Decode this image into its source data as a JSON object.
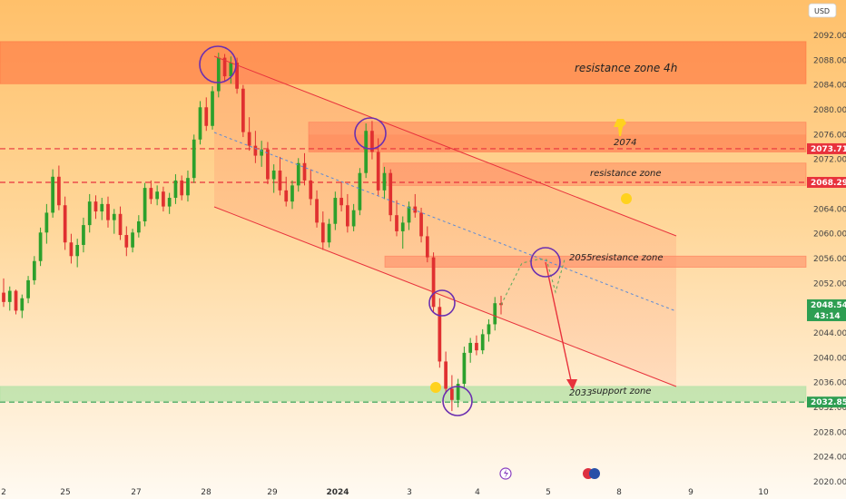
{
  "chart_data": {
    "type": "candlestick",
    "currency_button": "USD",
    "y_ticks": [
      "2092.000",
      "2088.000",
      "2084.000",
      "2080.000",
      "2076.000",
      "2072.000",
      "2068.000",
      "2064.000",
      "2060.000",
      "2056.000",
      "2052.000",
      "2048.000",
      "2044.000",
      "2040.000",
      "2036.000",
      "2032.000",
      "2028.000",
      "2024.000",
      "2020.000"
    ],
    "x_ticks": [
      {
        "label": "2",
        "bold": false
      },
      {
        "label": "25",
        "bold": false
      },
      {
        "label": "27",
        "bold": false
      },
      {
        "label": "28",
        "bold": false
      },
      {
        "label": "29",
        "bold": false
      },
      {
        "label": "2024",
        "bold": true
      },
      {
        "label": "3",
        "bold": false
      },
      {
        "label": "4",
        "bold": false
      },
      {
        "label": "5",
        "bold": false
      },
      {
        "label": "8",
        "bold": false
      },
      {
        "label": "9",
        "bold": false
      },
      {
        "label": "10",
        "bold": false
      }
    ],
    "zones": [
      {
        "label": "resistance zone 4h",
        "low": 2084.2,
        "high": 2091.0,
        "color": "#ff6a3a",
        "opacity": 0.55
      },
      {
        "label": "2074",
        "low": 2073.2,
        "high": 2078.0,
        "color": "#ff7050",
        "opacity": 0.45
      },
      {
        "label": "resistance zone",
        "low": 2067.8,
        "high": 2071.4,
        "color": "#ff7050",
        "opacity": 0.4
      },
      {
        "label": "2055",
        "low": 2054.6,
        "high": 2056.4,
        "color": "#ff7050",
        "opacity": 0.45
      },
      {
        "label": "resistance zone",
        "low": 2054.6,
        "high": 2056.4,
        "color": "#ff7050",
        "opacity": 0.0
      },
      {
        "label": "2033",
        "low": 2033.0,
        "high": 2035.4,
        "color": "#a8e0a0",
        "opacity": 0.65
      },
      {
        "label": "support zone",
        "low": 2033.0,
        "high": 2035.4,
        "color": "#a8e0a0",
        "opacity": 0.0
      }
    ],
    "price_lines": [
      {
        "value": "2073.716",
        "num": 2073.716,
        "color": "#e8323c"
      },
      {
        "value": "2068.291",
        "num": 2068.291,
        "color": "#e8323c"
      },
      {
        "value": "2032.851",
        "num": 2032.851,
        "color": "#2e9e52"
      }
    ],
    "current_price": {
      "value": "2048.540",
      "countdown": "43:14",
      "num": 2048.54
    },
    "candles": [
      [
        2050.5,
        2052.8,
        2048.2,
        2049.0
      ],
      [
        2049.0,
        2051.5,
        2047.6,
        2050.8
      ],
      [
        2050.8,
        2051.0,
        2047.0,
        2047.6
      ],
      [
        2047.6,
        2050.2,
        2046.4,
        2049.6
      ],
      [
        2049.6,
        2053.2,
        2048.8,
        2052.5
      ],
      [
        2052.5,
        2056.4,
        2051.8,
        2055.6
      ],
      [
        2055.6,
        2061.0,
        2054.8,
        2060.2
      ],
      [
        2060.2,
        2064.8,
        2058.4,
        2063.4
      ],
      [
        2063.4,
        2070.4,
        2062.6,
        2069.2
      ],
      [
        2069.2,
        2071.0,
        2063.8,
        2064.6
      ],
      [
        2064.6,
        2066.0,
        2057.4,
        2058.6
      ],
      [
        2058.6,
        2060.0,
        2055.2,
        2056.4
      ],
      [
        2056.4,
        2059.2,
        2054.6,
        2058.2
      ],
      [
        2058.2,
        2062.6,
        2057.0,
        2061.4
      ],
      [
        2061.4,
        2066.4,
        2060.2,
        2065.2
      ],
      [
        2065.2,
        2066.2,
        2062.4,
        2063.6
      ],
      [
        2063.6,
        2065.8,
        2062.2,
        2064.8
      ],
      [
        2064.8,
        2066.0,
        2061.0,
        2062.2
      ],
      [
        2062.2,
        2064.0,
        2060.0,
        2063.2
      ],
      [
        2063.2,
        2064.4,
        2059.0,
        2059.8
      ],
      [
        2059.8,
        2061.2,
        2056.4,
        2057.8
      ],
      [
        2057.8,
        2060.8,
        2057.0,
        2060.2
      ],
      [
        2060.2,
        2063.0,
        2059.4,
        2062.0
      ],
      [
        2062.0,
        2068.2,
        2061.2,
        2067.4
      ],
      [
        2067.4,
        2068.6,
        2064.8,
        2065.6
      ],
      [
        2065.6,
        2067.8,
        2064.6,
        2066.8
      ],
      [
        2066.8,
        2067.6,
        2063.6,
        2064.4
      ],
      [
        2064.4,
        2066.6,
        2063.2,
        2065.8
      ],
      [
        2065.8,
        2069.6,
        2064.8,
        2068.6
      ],
      [
        2068.6,
        2069.4,
        2065.4,
        2066.2
      ],
      [
        2066.2,
        2070.2,
        2065.2,
        2069.0
      ],
      [
        2069.0,
        2076.0,
        2068.2,
        2075.2
      ],
      [
        2075.2,
        2081.4,
        2074.4,
        2080.4
      ],
      [
        2080.4,
        2082.0,
        2076.6,
        2077.4
      ],
      [
        2077.4,
        2083.8,
        2076.8,
        2083.0
      ],
      [
        2083.0,
        2089.2,
        2082.0,
        2088.4
      ],
      [
        2088.4,
        2089.0,
        2084.6,
        2085.4
      ],
      [
        2085.4,
        2088.6,
        2084.2,
        2087.6
      ],
      [
        2087.6,
        2088.4,
        2082.6,
        2083.4
      ],
      [
        2083.4,
        2084.0,
        2075.6,
        2076.4
      ],
      [
        2076.4,
        2078.8,
        2073.4,
        2074.2
      ],
      [
        2074.2,
        2076.6,
        2071.4,
        2072.6
      ],
      [
        2072.6,
        2075.0,
        2070.8,
        2073.6
      ],
      [
        2073.6,
        2074.8,
        2068.0,
        2068.8
      ],
      [
        2068.8,
        2071.2,
        2066.6,
        2070.2
      ],
      [
        2070.2,
        2072.4,
        2066.2,
        2067.0
      ],
      [
        2067.0,
        2069.2,
        2064.4,
        2065.2
      ],
      [
        2065.2,
        2068.6,
        2064.0,
        2067.8
      ],
      [
        2067.8,
        2072.2,
        2066.8,
        2071.4
      ],
      [
        2071.4,
        2073.0,
        2067.8,
        2068.6
      ],
      [
        2068.6,
        2070.4,
        2064.6,
        2065.6
      ],
      [
        2065.6,
        2067.0,
        2061.0,
        2061.8
      ],
      [
        2061.8,
        2063.6,
        2057.4,
        2058.6
      ],
      [
        2058.6,
        2062.4,
        2057.8,
        2061.6
      ],
      [
        2061.6,
        2066.8,
        2060.6,
        2065.8
      ],
      [
        2065.8,
        2068.4,
        2063.6,
        2064.6
      ],
      [
        2064.6,
        2066.4,
        2060.2,
        2061.2
      ],
      [
        2061.2,
        2064.8,
        2060.4,
        2063.8
      ],
      [
        2063.8,
        2070.6,
        2063.0,
        2069.8
      ],
      [
        2069.8,
        2077.8,
        2069.0,
        2076.6
      ],
      [
        2076.6,
        2078.2,
        2072.0,
        2073.2
      ],
      [
        2073.2,
        2075.4,
        2066.2,
        2067.0
      ],
      [
        2067.0,
        2070.8,
        2065.6,
        2069.8
      ],
      [
        2069.8,
        2070.4,
        2062.0,
        2063.0
      ],
      [
        2063.0,
        2065.4,
        2059.6,
        2060.4
      ],
      [
        2060.4,
        2062.8,
        2057.6,
        2061.8
      ],
      [
        2061.8,
        2065.2,
        2060.6,
        2064.4
      ],
      [
        2064.4,
        2066.4,
        2062.6,
        2063.4
      ],
      [
        2063.4,
        2064.2,
        2058.6,
        2059.6
      ],
      [
        2059.6,
        2061.2,
        2055.4,
        2056.2
      ],
      [
        2056.2,
        2057.0,
        2047.4,
        2048.2
      ],
      [
        2048.2,
        2049.6,
        2038.4,
        2039.4
      ],
      [
        2039.4,
        2041.0,
        2034.2,
        2035.0
      ],
      [
        2035.0,
        2037.2,
        2031.4,
        2033.2
      ],
      [
        2033.2,
        2036.6,
        2032.0,
        2035.8
      ],
      [
        2035.8,
        2041.8,
        2035.0,
        2040.8
      ],
      [
        2040.8,
        2043.2,
        2039.2,
        2042.4
      ],
      [
        2042.4,
        2043.6,
        2040.4,
        2041.2
      ],
      [
        2041.2,
        2044.6,
        2040.6,
        2043.8
      ],
      [
        2043.8,
        2046.2,
        2042.6,
        2045.4
      ],
      [
        2045.4,
        2049.8,
        2044.4,
        2048.8
      ],
      [
        2048.8,
        2050.0,
        2047.0,
        2048.5
      ]
    ]
  }
}
